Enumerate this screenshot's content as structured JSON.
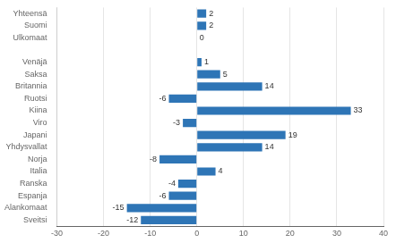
{
  "chart_data": {
    "type": "bar",
    "orientation": "horizontal",
    "categories": [
      "Yhteensä",
      "Suomi",
      "Ulkomaat",
      null,
      "Venäjä",
      "Saksa",
      "Britannia",
      "Ruotsi",
      "Kiina",
      "Viro",
      "Japani",
      "Yhdysvallat",
      "Norja",
      "Italia",
      "Ranska",
      "Espanja",
      "Alankomaat",
      "Sveitsi"
    ],
    "values": [
      2,
      2,
      0,
      null,
      1,
      5,
      14,
      -6,
      33,
      -3,
      19,
      14,
      -8,
      4,
      -4,
      -6,
      -15,
      -12
    ],
    "color": "#2E75B6",
    "xlim": [
      -30,
      40
    ],
    "xticks": [
      -30,
      -20,
      -10,
      0,
      10,
      20,
      30,
      40
    ],
    "grid": true,
    "data_labels": true
  }
}
